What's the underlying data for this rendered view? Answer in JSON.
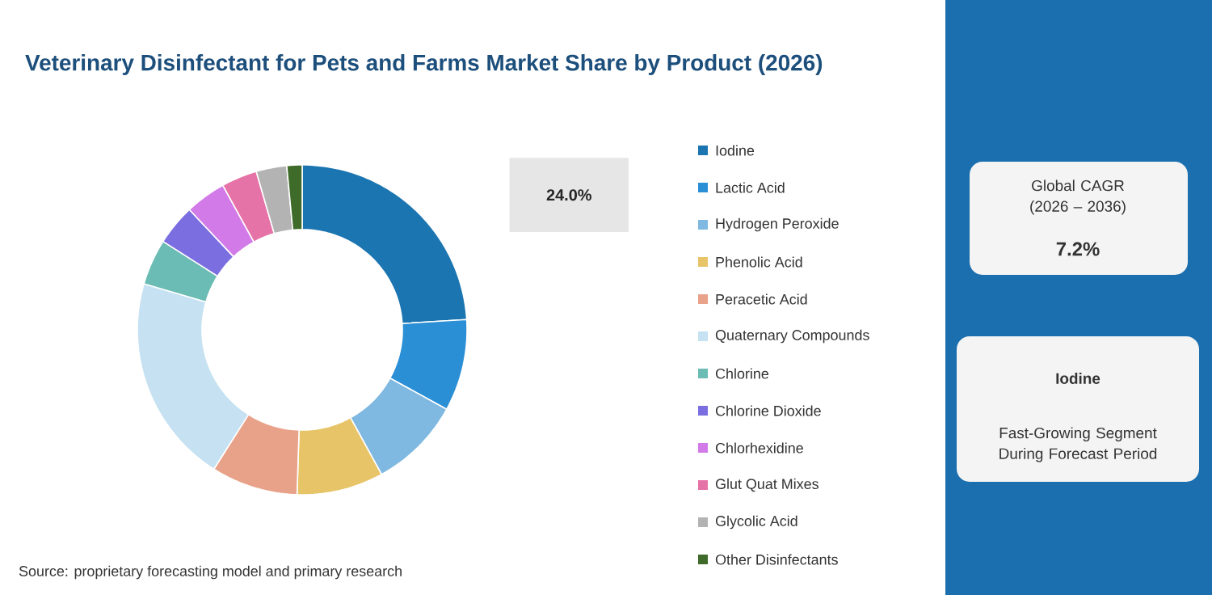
{
  "chart_data": {
    "type": "donut",
    "title": "Veterinary Disinfectant for Pets and Farms Market Share by Product (2026)",
    "categories": [
      "Iodine",
      "Lactic Acid",
      "Hydrogen Peroxide",
      "Phenolic Acid",
      "Peracetic Acid",
      "Quaternary Compounds",
      "Chlorine",
      "Chlorine Dioxide",
      "Chlorhexidine",
      "Glut Quat Mixes",
      "Glycolic Acid",
      "Other Disinfectants"
    ],
    "values": [
      24.0,
      9,
      9,
      8.5,
      8.5,
      20.5,
      4.5,
      4,
      4,
      3.5,
      3,
      1.5
    ],
    "colors": [
      "#1b75b0",
      "#2b8fd6",
      "#7fb8e0",
      "#e8c468",
      "#e9a28a",
      "#c5e1f2",
      "#6bbcb4",
      "#7b6ee0",
      "#d17ae8",
      "#e673a8",
      "#b3b3b3",
      "#3f6b2a"
    ],
    "value_labels": [
      "24.0%",
      null,
      null,
      null,
      null,
      null,
      null,
      null,
      null,
      null,
      null,
      null
    ],
    "legend": "right",
    "annotations": [
      "Source: proprietary forecasting model and primary research",
      "Global CAGR (2026 – 2036)",
      "7.2%",
      "Iodine",
      "Fast-Growing Segment During Forecast Period"
    ]
  }
}
